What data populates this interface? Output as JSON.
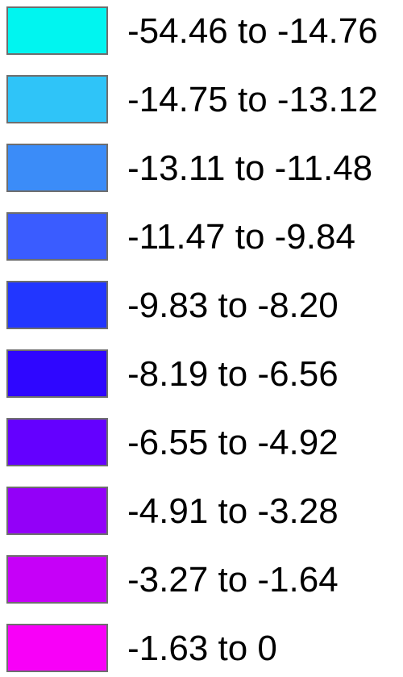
{
  "legend": {
    "items": [
      {
        "label": "-54.46 to -14.76",
        "color": "#00f5f0"
      },
      {
        "label": "-14.75 to -13.12",
        "color": "#2fc4f8"
      },
      {
        "label": "-13.11 to -11.48",
        "color": "#3b8cf8"
      },
      {
        "label": "-11.47 to -9.84",
        "color": "#3a5cff"
      },
      {
        "label": "-9.83 to -8.20",
        "color": "#2236ff"
      },
      {
        "label": "-8.19 to -6.56",
        "color": "#2f06ff"
      },
      {
        "label": "-6.55 to -4.92",
        "color": "#6400ff"
      },
      {
        "label": "-4.91 to -3.28",
        "color": "#9300f8"
      },
      {
        "label": "-3.27 to -1.64",
        "color": "#c600f8"
      },
      {
        "label": "-1.63 to 0",
        "color": "#f800f8"
      }
    ]
  }
}
